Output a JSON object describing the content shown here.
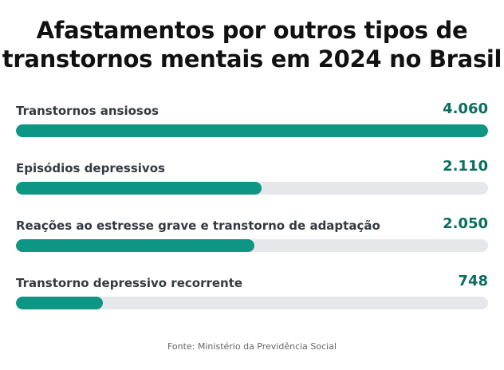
{
  "title": "Afastamentos por outros tipos de transtornos mentais em 2024 no Brasil",
  "source": "Fonte: Ministério da Previdência Social",
  "colors": {
    "bar_fill": "#0e9684",
    "bar_track": "#e5e7eb",
    "value_text": "#0b6e5e"
  },
  "chart_data": {
    "type": "bar",
    "orientation": "horizontal",
    "title": "Afastamentos por outros tipos de transtornos mentais em 2024 no Brasil",
    "categories": [
      "Transtornos ansiosos",
      "Episódios depressivos",
      "Reações ao estresse grave e transtorno de adaptação",
      "Transtorno depressivo recorrente"
    ],
    "values": [
      4060,
      2110,
      2050,
      748
    ],
    "value_labels": [
      "4.060",
      "2.110",
      "2.050",
      "748"
    ],
    "xlim": [
      0,
      4060
    ],
    "grid": false,
    "legend": "none"
  }
}
